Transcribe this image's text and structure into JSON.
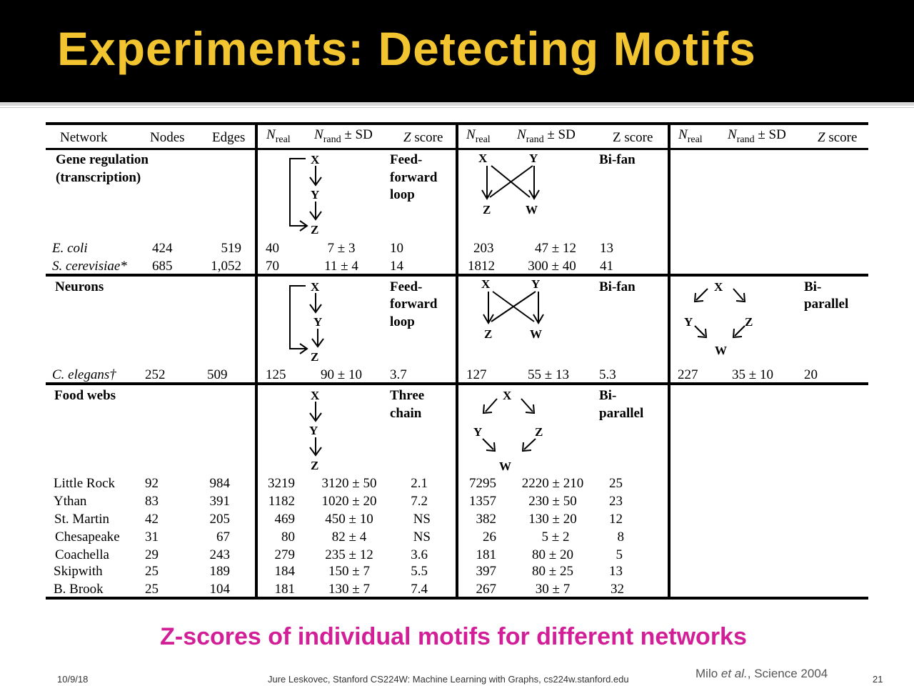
{
  "slide": {
    "title": "Experiments: Detecting Motifs",
    "caption": "Z-scores of individual motifs for different networks",
    "citation_author": "Milo ",
    "citation_etal": "et al.",
    "citation_rest": ", Science 2004",
    "footer_date": "10/9/18",
    "footer_center": "Jure Leskovec, Stanford CS224W: Machine Learning with Graphs, cs224w.stanford.edu",
    "page_number": "21"
  },
  "table": {
    "headers": {
      "network": "Network",
      "nodes": "Nodes",
      "edges": "Edges",
      "n": "N",
      "real_sub": "real",
      "rand_sub": "rand",
      "pm_sd": " ± SD",
      "z": "Z",
      "score": " score",
      "zscore_plain": "Z score"
    },
    "sections": [
      {
        "label": "Gene regulation",
        "label2": "(transcription)",
        "motif1": {
          "name_a": "Feed-",
          "name_b": "forward",
          "name_c": "loop",
          "nodes": [
            "X",
            "Y",
            "Z"
          ]
        },
        "motif2": {
          "name_a": "Bi-fan",
          "nodes": [
            "X",
            "Y",
            "Z",
            "W"
          ]
        },
        "rows": [
          {
            "network": "E. coli",
            "nodes": "424",
            "edges": "519",
            "m1_real": "40",
            "m1_rand": "7 ± 3",
            "m1_z": "10",
            "m2_real": "203",
            "m2_rand": "47 ± 12",
            "m2_z": "13"
          },
          {
            "network": "S. cerevisiae*",
            "nodes": "685",
            "edges": "1,052",
            "m1_real": "70",
            "m1_rand": "11 ± 4",
            "m1_z": "14",
            "m2_real": "1812",
            "m2_rand": "300 ± 40",
            "m2_z": "41"
          }
        ]
      },
      {
        "label": "Neurons",
        "motif1": {
          "name_a": "Feed-",
          "name_b": "forward",
          "name_c": "loop",
          "nodes": [
            "X",
            "Y",
            "Z"
          ]
        },
        "motif2": {
          "name_a": "Bi-fan",
          "nodes": [
            "X",
            "Y",
            "Z",
            "W"
          ]
        },
        "motif3": {
          "name_a": "Bi-",
          "name_b": "parallel",
          "nodes": [
            "X",
            "Y",
            "Z",
            "W"
          ]
        },
        "rows": [
          {
            "network": "C. elegans†",
            "nodes": "252",
            "edges": "509",
            "m1_real": "125",
            "m1_rand": "90 ± 10",
            "m1_z": "3.7",
            "m2_real": "127",
            "m2_rand": "55 ± 13",
            "m2_z": "5.3",
            "m3_real": "227",
            "m3_rand": "35 ± 10",
            "m3_z": "20"
          }
        ]
      },
      {
        "label": "Food webs",
        "motif1": {
          "name_a": "Three",
          "name_b": "chain",
          "nodes": [
            "X",
            "Y",
            "Z"
          ]
        },
        "motif2": {
          "name_a": "Bi-",
          "name_b": "parallel",
          "nodes": [
            "X",
            "Y",
            "Z",
            "W"
          ]
        },
        "rows": [
          {
            "network": "Little Rock",
            "nodes": "92",
            "edges": "984",
            "m1_real": "3219",
            "m1_rand": "3120 ± 50",
            "m1_z": "2.1",
            "m2_real": "7295",
            "m2_rand": "2220 ± 210",
            "m2_z": "25"
          },
          {
            "network": "Ythan",
            "nodes": "83",
            "edges": "391",
            "m1_real": "1182",
            "m1_rand": "1020 ± 20",
            "m1_z": "7.2",
            "m2_real": "1357",
            "m2_rand": "230 ± 50",
            "m2_z": "23"
          },
          {
            "network": "St. Martin",
            "nodes": "42",
            "edges": "205",
            "m1_real": "469",
            "m1_rand": "450 ± 10",
            "m1_z": "NS",
            "m2_real": "382",
            "m2_rand": "130 ± 20",
            "m2_z": "12"
          },
          {
            "network": "Chesapeake",
            "nodes": "31",
            "edges": "67",
            "m1_real": "80",
            "m1_rand": "82 ± 4",
            "m1_z": "NS",
            "m2_real": "26",
            "m2_rand": "5 ± 2",
            "m2_z": "8"
          },
          {
            "network": "Coachella",
            "nodes": "29",
            "edges": "243",
            "m1_real": "279",
            "m1_rand": "235 ± 12",
            "m1_z": "3.6",
            "m2_real": "181",
            "m2_rand": "80 ± 20",
            "m2_z": "5"
          },
          {
            "network": "Skipwith",
            "nodes": "25",
            "edges": "189",
            "m1_real": "184",
            "m1_rand": "150 ± 7",
            "m1_z": "5.5",
            "m2_real": "397",
            "m2_rand": "80 ± 25",
            "m2_z": "13"
          },
          {
            "network": "B. Brook",
            "nodes": "25",
            "edges": "104",
            "m1_real": "181",
            "m1_rand": "130 ± 7",
            "m1_z": "7.4",
            "m2_real": "267",
            "m2_rand": "30 ± 7",
            "m2_z": "32"
          }
        ]
      }
    ]
  }
}
